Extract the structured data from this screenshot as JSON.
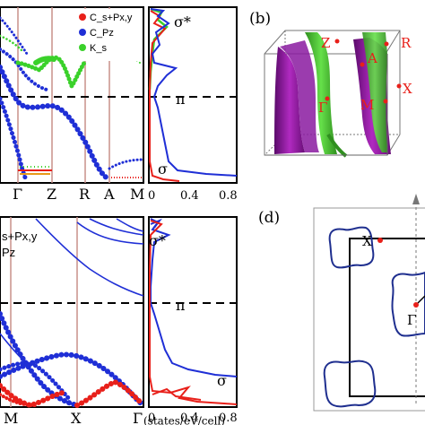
{
  "panels": {
    "b_label": "(b)",
    "d_label": "(d)"
  },
  "top_band": {
    "legend": [
      "C_s+Px,y",
      "C_Pz",
      "K_s"
    ],
    "legend_colors": [
      "#e8201a",
      "#1f2fd6",
      "#3ad12a"
    ],
    "kpath": [
      "Γ",
      "Z",
      "R",
      "A",
      "M"
    ]
  },
  "top_dos": {
    "labels": [
      "σ*",
      "π",
      "σ"
    ],
    "ticks": [
      "0",
      "0.4",
      "0.8"
    ]
  },
  "fermi_3d": {
    "points": [
      "Z",
      "R",
      "A",
      "Γ",
      "M",
      "X"
    ]
  },
  "bottom_band": {
    "legend": [
      "s+Px,y",
      "Pz"
    ],
    "kpath": [
      "M",
      "X",
      "Γ"
    ]
  },
  "bottom_dos": {
    "labels": [
      "σ*",
      "π",
      "σ"
    ],
    "ticks": [
      "0",
      "0.4",
      "0.8"
    ],
    "xlabel": "(states/eV/cell)"
  },
  "fermi_2d": {
    "points": [
      "X",
      "Γ"
    ]
  }
}
